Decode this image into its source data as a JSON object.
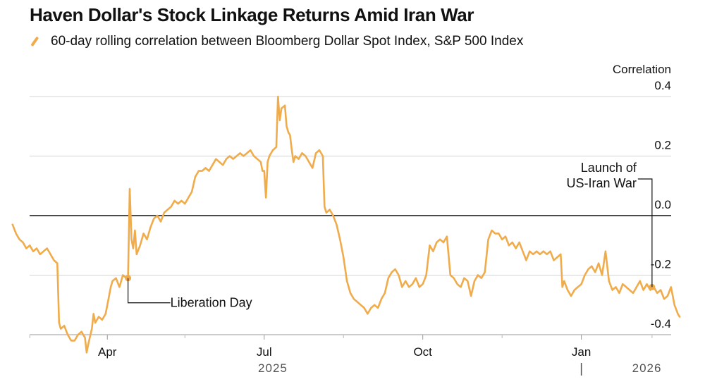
{
  "title": "Haven Dollar's Stock Linkage Returns Amid Iran War",
  "legend_label": "60-day rolling correlation between Bloomberg Dollar Spot Index, S&P 500 Index",
  "line_color": "#f0ab4b",
  "chart_data": {
    "type": "line",
    "title": "Haven Dollar's Stock Linkage Returns Amid Iran War",
    "ylabel": "Correlation",
    "ylim": [
      -0.4,
      0.4
    ],
    "yticks": [
      0.4,
      0.2,
      0.0,
      -0.2,
      -0.4
    ],
    "ytick_labels": [
      "0.4",
      "0.2",
      "0.0",
      "-0.2",
      "-0.4"
    ],
    "xticks": [
      {
        "label": "Apr",
        "day": 59
      },
      {
        "label": "Jul",
        "day": 150
      },
      {
        "label": "Oct",
        "day": 242
      },
      {
        "label": "Jan",
        "day": 334
      }
    ],
    "years": [
      {
        "label": "2025",
        "day": 155
      },
      {
        "label": "2026",
        "day": 372
      }
    ],
    "year_divider_day": 334,
    "grid": true,
    "series": [
      {
        "name": "60-day rolling correlation between Bloomberg Dollar Spot Index, S&P 500 Index",
        "points": [
          [
            4,
            -0.03
          ],
          [
            6,
            -0.06
          ],
          [
            8,
            -0.08
          ],
          [
            10,
            -0.09
          ],
          [
            12,
            -0.11
          ],
          [
            14,
            -0.1
          ],
          [
            16,
            -0.12
          ],
          [
            18,
            -0.11
          ],
          [
            20,
            -0.13
          ],
          [
            22,
            -0.12
          ],
          [
            24,
            -0.11
          ],
          [
            26,
            -0.13
          ],
          [
            28,
            -0.15
          ],
          [
            30,
            -0.16
          ],
          [
            31,
            -0.36
          ],
          [
            32,
            -0.38
          ],
          [
            34,
            -0.37
          ],
          [
            36,
            -0.4
          ],
          [
            38,
            -0.42
          ],
          [
            40,
            -0.42
          ],
          [
            42,
            -0.4
          ],
          [
            44,
            -0.39
          ],
          [
            46,
            -0.41
          ],
          [
            47,
            -0.46
          ],
          [
            48,
            -0.43
          ],
          [
            50,
            -0.38
          ],
          [
            51,
            -0.33
          ],
          [
            52,
            -0.36
          ],
          [
            54,
            -0.34
          ],
          [
            56,
            -0.35
          ],
          [
            58,
            -0.33
          ],
          [
            60,
            -0.27
          ],
          [
            61,
            -0.24
          ],
          [
            62,
            -0.22
          ],
          [
            64,
            -0.21
          ],
          [
            66,
            -0.24
          ],
          [
            68,
            -0.2
          ],
          [
            70,
            -0.21
          ],
          [
            71,
            -0.21
          ],
          [
            72,
            0.09
          ],
          [
            73,
            -0.08
          ],
          [
            74,
            -0.11
          ],
          [
            75,
            -0.05
          ],
          [
            76,
            -0.13
          ],
          [
            78,
            -0.1
          ],
          [
            80,
            -0.06
          ],
          [
            82,
            -0.08
          ],
          [
            84,
            -0.04
          ],
          [
            86,
            -0.01
          ],
          [
            88,
            0.0
          ],
          [
            90,
            -0.02
          ],
          [
            92,
            0.01
          ],
          [
            94,
            0.02
          ],
          [
            96,
            0.03
          ],
          [
            98,
            0.05
          ],
          [
            100,
            0.04
          ],
          [
            102,
            0.05
          ],
          [
            104,
            0.04
          ],
          [
            106,
            0.06
          ],
          [
            108,
            0.08
          ],
          [
            110,
            0.13
          ],
          [
            112,
            0.15
          ],
          [
            114,
            0.15
          ],
          [
            116,
            0.16
          ],
          [
            118,
            0.15
          ],
          [
            120,
            0.17
          ],
          [
            122,
            0.19
          ],
          [
            124,
            0.18
          ],
          [
            126,
            0.17
          ],
          [
            128,
            0.19
          ],
          [
            130,
            0.2
          ],
          [
            132,
            0.19
          ],
          [
            134,
            0.2
          ],
          [
            136,
            0.21
          ],
          [
            138,
            0.2
          ],
          [
            140,
            0.21
          ],
          [
            142,
            0.22
          ],
          [
            144,
            0.2
          ],
          [
            146,
            0.19
          ],
          [
            148,
            0.18
          ],
          [
            149,
            0.15
          ],
          [
            150,
            0.15
          ],
          [
            151,
            0.06
          ],
          [
            152,
            0.18
          ],
          [
            153,
            0.2
          ],
          [
            155,
            0.22
          ],
          [
            157,
            0.23
          ],
          [
            158,
            0.4
          ],
          [
            159,
            0.32
          ],
          [
            160,
            0.36
          ],
          [
            162,
            0.37
          ],
          [
            163,
            0.3
          ],
          [
            164,
            0.28
          ],
          [
            165,
            0.27
          ],
          [
            166,
            0.22
          ],
          [
            167,
            0.18
          ],
          [
            168,
            0.2
          ],
          [
            170,
            0.19
          ],
          [
            172,
            0.21
          ],
          [
            174,
            0.2
          ],
          [
            176,
            0.18
          ],
          [
            178,
            0.16
          ],
          [
            180,
            0.21
          ],
          [
            182,
            0.22
          ],
          [
            184,
            0.2
          ],
          [
            185,
            0.03
          ],
          [
            186,
            0.01
          ],
          [
            188,
            0.02
          ],
          [
            190,
            0.0
          ],
          [
            192,
            -0.03
          ],
          [
            194,
            -0.08
          ],
          [
            196,
            -0.14
          ],
          [
            198,
            -0.22
          ],
          [
            200,
            -0.26
          ],
          [
            202,
            -0.28
          ],
          [
            204,
            -0.29
          ],
          [
            206,
            -0.3
          ],
          [
            208,
            -0.31
          ],
          [
            210,
            -0.33
          ],
          [
            212,
            -0.31
          ],
          [
            214,
            -0.3
          ],
          [
            216,
            -0.31
          ],
          [
            218,
            -0.28
          ],
          [
            220,
            -0.26
          ],
          [
            222,
            -0.21
          ],
          [
            224,
            -0.19
          ],
          [
            226,
            -0.18
          ],
          [
            228,
            -0.2
          ],
          [
            230,
            -0.24
          ],
          [
            232,
            -0.22
          ],
          [
            234,
            -0.24
          ],
          [
            236,
            -0.23
          ],
          [
            238,
            -0.21
          ],
          [
            240,
            -0.24
          ],
          [
            242,
            -0.23
          ],
          [
            244,
            -0.2
          ],
          [
            246,
            -0.1
          ],
          [
            248,
            -0.12
          ],
          [
            250,
            -0.09
          ],
          [
            252,
            -0.08
          ],
          [
            254,
            -0.09
          ],
          [
            256,
            -0.07
          ],
          [
            258,
            -0.2
          ],
          [
            260,
            -0.21
          ],
          [
            262,
            -0.23
          ],
          [
            264,
            -0.24
          ],
          [
            266,
            -0.21
          ],
          [
            268,
            -0.22
          ],
          [
            270,
            -0.27
          ],
          [
            272,
            -0.22
          ],
          [
            274,
            -0.2
          ],
          [
            276,
            -0.21
          ],
          [
            278,
            -0.19
          ],
          [
            280,
            -0.08
          ],
          [
            282,
            -0.05
          ],
          [
            284,
            -0.06
          ],
          [
            286,
            -0.06
          ],
          [
            288,
            -0.08
          ],
          [
            290,
            -0.07
          ],
          [
            292,
            -0.1
          ],
          [
            294,
            -0.09
          ],
          [
            296,
            -0.11
          ],
          [
            298,
            -0.09
          ],
          [
            300,
            -0.12
          ],
          [
            302,
            -0.15
          ],
          [
            304,
            -0.12
          ],
          [
            306,
            -0.13
          ],
          [
            308,
            -0.12
          ],
          [
            310,
            -0.13
          ],
          [
            312,
            -0.12
          ],
          [
            314,
            -0.13
          ],
          [
            316,
            -0.12
          ],
          [
            318,
            -0.15
          ],
          [
            320,
            -0.14
          ],
          [
            322,
            -0.13
          ],
          [
            323,
            -0.24
          ],
          [
            324,
            -0.22
          ],
          [
            326,
            -0.25
          ],
          [
            328,
            -0.27
          ],
          [
            330,
            -0.25
          ],
          [
            332,
            -0.24
          ],
          [
            334,
            -0.23
          ],
          [
            336,
            -0.2
          ],
          [
            338,
            -0.18
          ],
          [
            340,
            -0.17
          ],
          [
            342,
            -0.19
          ],
          [
            344,
            -0.16
          ],
          [
            346,
            -0.2
          ],
          [
            348,
            -0.12
          ],
          [
            350,
            -0.22
          ],
          [
            352,
            -0.25
          ],
          [
            354,
            -0.24
          ],
          [
            356,
            -0.26
          ],
          [
            358,
            -0.23
          ],
          [
            360,
            -0.24
          ],
          [
            362,
            -0.25
          ],
          [
            364,
            -0.26
          ],
          [
            366,
            -0.24
          ],
          [
            368,
            -0.22
          ],
          [
            370,
            -0.25
          ],
          [
            372,
            -0.23
          ],
          [
            374,
            -0.25
          ],
          [
            376,
            -0.24
          ],
          [
            378,
            -0.26
          ],
          [
            380,
            -0.25
          ],
          [
            382,
            -0.28
          ],
          [
            384,
            -0.27
          ],
          [
            386,
            -0.24
          ],
          [
            388,
            -0.3
          ],
          [
            390,
            -0.33
          ],
          [
            391,
            -0.34
          ]
        ]
      }
    ],
    "annotations": [
      {
        "label": "Liberation Day",
        "day": 71,
        "value": -0.21
      },
      {
        "label_line1": "Launch of",
        "label_line2": "US-Iran War",
        "day": 375,
        "value": -0.24
      }
    ]
  }
}
